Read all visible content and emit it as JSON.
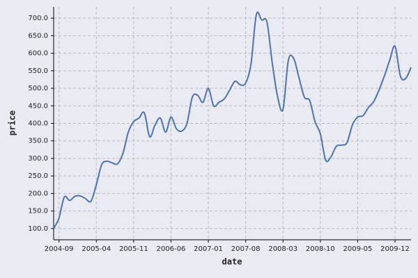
{
  "chart_data": {
    "type": "line",
    "x_label": "date",
    "y_label": "price",
    "x": [
      "2004-08",
      "2004-09",
      "2004-10",
      "2004-11",
      "2004-12",
      "2005-01",
      "2005-02",
      "2005-03",
      "2005-04",
      "2005-05",
      "2005-06",
      "2005-07",
      "2005-08",
      "2005-09",
      "2005-10",
      "2005-11",
      "2005-12",
      "2006-01",
      "2006-02",
      "2006-03",
      "2006-04",
      "2006-05",
      "2006-06",
      "2006-07",
      "2006-08",
      "2006-09",
      "2006-10",
      "2006-11",
      "2006-12",
      "2007-01",
      "2007-02",
      "2007-03",
      "2007-04",
      "2007-05",
      "2007-06",
      "2007-07",
      "2007-08",
      "2007-09",
      "2007-10",
      "2007-11",
      "2007-12",
      "2008-01",
      "2008-02",
      "2008-03",
      "2008-04",
      "2008-05",
      "2008-06",
      "2008-07",
      "2008-08",
      "2008-09",
      "2008-10",
      "2008-11",
      "2008-12",
      "2009-01",
      "2009-02",
      "2009-03",
      "2009-04",
      "2009-05",
      "2009-06",
      "2009-07",
      "2009-08",
      "2009-09",
      "2009-10",
      "2009-11",
      "2009-12",
      "2010-01",
      "2010-02",
      "2010-03"
    ],
    "series": [
      {
        "color": "#4c72b0",
        "values": [
          100,
          130,
          190,
          180,
          192,
          193,
          185,
          178,
          225,
          282,
          292,
          287,
          285,
          315,
          375,
          405,
          415,
          430,
          362,
          395,
          415,
          375,
          418,
          385,
          378,
          400,
          475,
          480,
          460,
          500,
          450,
          460,
          470,
          495,
          520,
          510,
          515,
          570,
          710,
          695,
          688,
          570,
          475,
          440,
          580,
          585,
          530,
          475,
          465,
          405,
          370,
          295,
          305,
          335,
          338,
          345,
          395,
          418,
          422,
          445,
          462,
          495,
          535,
          580,
          620,
          535,
          528,
          560
        ]
      }
    ],
    "xlim": [
      "2004-08",
      "2010-03"
    ],
    "xticks": [
      "2004-09",
      "2005-04",
      "2005-11",
      "2006-06",
      "2007-01",
      "2007-08",
      "2008-03",
      "2008-10",
      "2009-05",
      "2009-12"
    ],
    "ylim": [
      68,
      732
    ],
    "yticks": [
      {
        "value": 100,
        "label": "100.0"
      },
      {
        "value": 150,
        "label": "150.0"
      },
      {
        "value": 200,
        "label": "200.0"
      },
      {
        "value": 250,
        "label": "250.0"
      },
      {
        "value": 300,
        "label": "300.0"
      },
      {
        "value": 350,
        "label": "350.0"
      },
      {
        "value": 400,
        "label": "400.0"
      },
      {
        "value": 450,
        "label": "450.0"
      },
      {
        "value": 500,
        "label": "500.0"
      },
      {
        "value": 550,
        "label": "550.0"
      },
      {
        "value": 600,
        "label": "600.0"
      },
      {
        "value": 650,
        "label": "650.0"
      },
      {
        "value": 700,
        "label": "700.0"
      }
    ],
    "grid": true
  }
}
